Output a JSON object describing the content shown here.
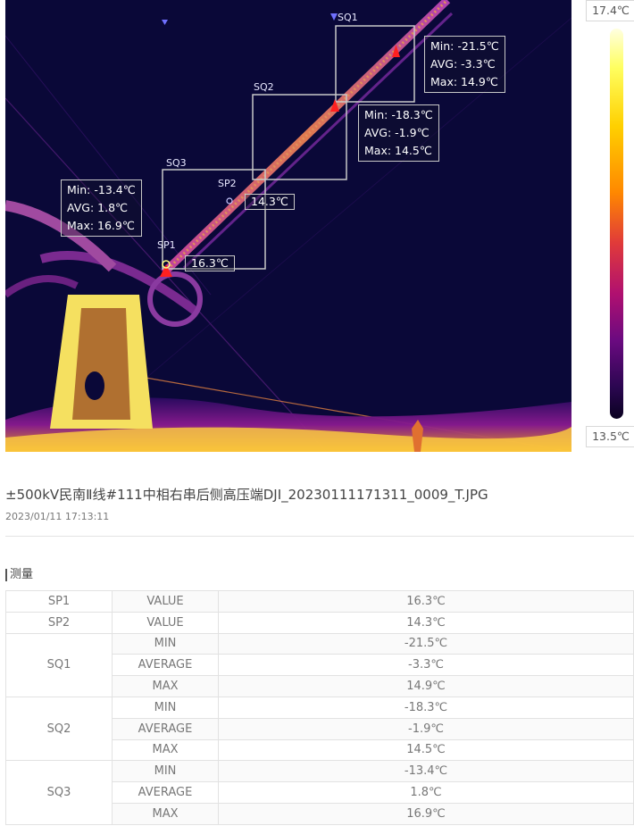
{
  "thermal": {
    "areas": [
      {
        "tag": "SQ1",
        "min": "Min: -21.5℃",
        "avg": "AVG: -3.3℃",
        "max": "Max: 14.9℃"
      },
      {
        "tag": "SQ2",
        "min": "Min: -18.3℃",
        "avg": "AVG: -1.9℃",
        "max": "Max: 14.5℃"
      },
      {
        "tag": "SQ3",
        "min": "Min: -13.4℃",
        "avg": "AVG: 1.8℃",
        "max": "Max: 16.9℃"
      }
    ],
    "points": [
      {
        "tag": "SP1",
        "value": "16.3℃"
      },
      {
        "tag": "SP2",
        "value": "14.3℃"
      }
    ]
  },
  "scale": {
    "max": "17.4℃",
    "min": "13.5℃"
  },
  "image_title": "±500kV民南Ⅱ线#111中相右串后侧高压端DJI_20230111171311_0009_T.JPG",
  "image_date": "2023/01/11 17:13:11",
  "section_title": "测量",
  "measurements": [
    {
      "name": "SP1",
      "rows": [
        {
          "type": "VALUE",
          "value": "16.3℃"
        }
      ]
    },
    {
      "name": "SP2",
      "rows": [
        {
          "type": "VALUE",
          "value": "14.3℃"
        }
      ]
    },
    {
      "name": "SQ1",
      "rows": [
        {
          "type": "MIN",
          "value": "-21.5℃"
        },
        {
          "type": "AVERAGE",
          "value": "-3.3℃"
        },
        {
          "type": "MAX",
          "value": "14.9℃"
        }
      ]
    },
    {
      "name": "SQ2",
      "rows": [
        {
          "type": "MIN",
          "value": "-18.3℃"
        },
        {
          "type": "AVERAGE",
          "value": "-1.9℃"
        },
        {
          "type": "MAX",
          "value": "14.5℃"
        }
      ]
    },
    {
      "name": "SQ3",
      "rows": [
        {
          "type": "MIN",
          "value": "-13.4℃"
        },
        {
          "type": "AVERAGE",
          "value": "1.8℃"
        },
        {
          "type": "MAX",
          "value": "16.9℃"
        }
      ]
    }
  ]
}
